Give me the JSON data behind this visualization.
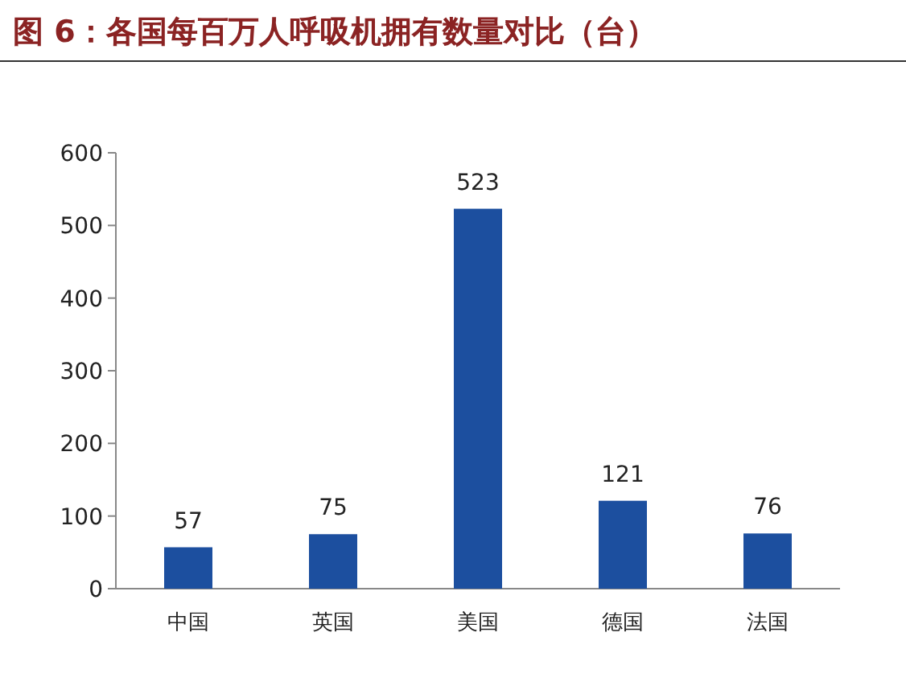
{
  "chart_data": {
    "type": "bar",
    "title": "图 6：各国每百万人呼吸机拥有数量对比（台）",
    "categories": [
      "中国",
      "英国",
      "美国",
      "德国",
      "法国"
    ],
    "values": [
      57,
      75,
      523,
      121,
      76
    ],
    "color": "#1c4f9f",
    "ylim": [
      0,
      600
    ],
    "yticks": [
      0,
      100,
      200,
      300,
      400,
      500,
      600
    ],
    "data_labels": true
  }
}
